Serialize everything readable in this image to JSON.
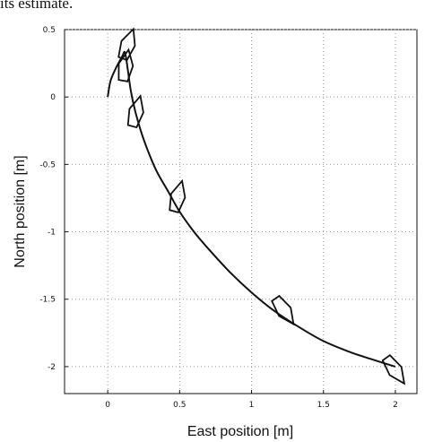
{
  "caption_fragment": "its estimate.",
  "chart_data": {
    "type": "line",
    "xlabel": "East position [m]",
    "ylabel": "North position [m]",
    "xlim": [
      -0.3,
      2.15
    ],
    "ylim": [
      -2.2,
      0.5
    ],
    "xticks": [
      0,
      0.5,
      1,
      1.5,
      2
    ],
    "xtick_labels": [
      "0",
      "0.5",
      "1",
      "1.5",
      "2"
    ],
    "yticks": [
      0.5,
      0,
      -0.5,
      -1,
      -1.5,
      -2
    ],
    "ytick_labels": [
      "0.5",
      "0",
      "-0.5",
      "-1",
      "-1.5",
      "-2"
    ],
    "grid": true,
    "series": [
      {
        "values_x": [
          0.0,
          0.02,
          0.06,
          0.1,
          0.12,
          0.14,
          0.16,
          0.19,
          0.23,
          0.28,
          0.34,
          0.42,
          0.5,
          0.6,
          0.72,
          0.85,
          1.0,
          1.15,
          1.32,
          1.5,
          1.68,
          1.85,
          2.0
        ],
        "values_y": [
          0.0,
          0.12,
          0.22,
          0.3,
          0.33,
          0.2,
          0.05,
          -0.1,
          -0.25,
          -0.4,
          -0.55,
          -0.7,
          -0.85,
          -1.0,
          -1.15,
          -1.3,
          -1.45,
          -1.58,
          -1.7,
          -1.81,
          -1.89,
          -1.95,
          -2.0
        ]
      }
    ],
    "vessel_poses": [
      {
        "x": 0.13,
        "y": 0.36,
        "heading_deg": 20
      },
      {
        "x": 0.12,
        "y": 0.2,
        "heading_deg": 10
      },
      {
        "x": 0.19,
        "y": -0.14,
        "heading_deg": 15
      },
      {
        "x": 0.48,
        "y": -0.77,
        "heading_deg": 15
      },
      {
        "x": 1.21,
        "y": -1.56,
        "heading_deg": 145
      },
      {
        "x": 1.98,
        "y": -2.0,
        "heading_deg": 145
      }
    ]
  }
}
